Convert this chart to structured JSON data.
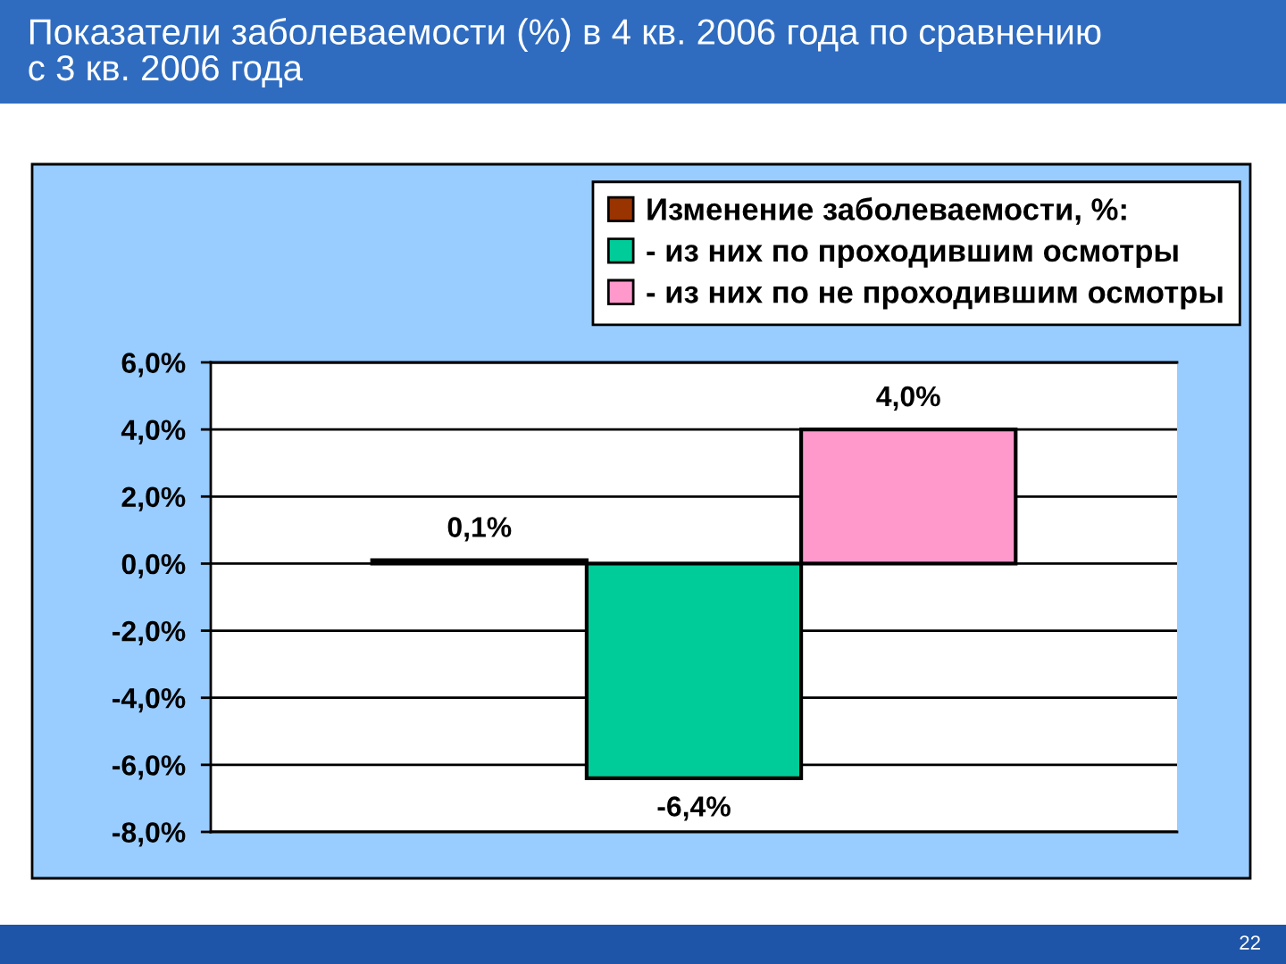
{
  "chart_data": {
    "type": "bar",
    "title": "Показатели заболеваемости (%) в 4 кв. 2006 года по сравнению с 3 кв. 2006 года",
    "categories": [
      null
    ],
    "series": [
      {
        "name": "Изменение заболеваемости, %:",
        "color": "#993300",
        "values": [
          0.1
        ],
        "value_labels": [
          "0,1%"
        ]
      },
      {
        "name": "- из них по проходившим осмотры",
        "color": "#00cc99",
        "values": [
          -6.4
        ],
        "value_labels": [
          "-6,4%"
        ]
      },
      {
        "name": "- из них по не проходившим осмотры",
        "color": "#ff99cc",
        "values": [
          4.0
        ],
        "value_labels": [
          "4,0%"
        ]
      }
    ],
    "ylim": [
      -8,
      6
    ],
    "yticks": [
      {
        "value": -8,
        "label": "-8,0%"
      },
      {
        "value": -6,
        "label": "-6,0%"
      },
      {
        "value": -4,
        "label": "-4,0%"
      },
      {
        "value": -2,
        "label": "-2,0%"
      },
      {
        "value": 0,
        "label": "0,0%"
      },
      {
        "value": 2,
        "label": "2,0%"
      },
      {
        "value": 4,
        "label": "4,0%"
      },
      {
        "value": 6,
        "label": "6,0%"
      }
    ],
    "grid": "y",
    "legend": "top right",
    "tick_labels": "y",
    "annotations": [
      "22"
    ]
  }
}
